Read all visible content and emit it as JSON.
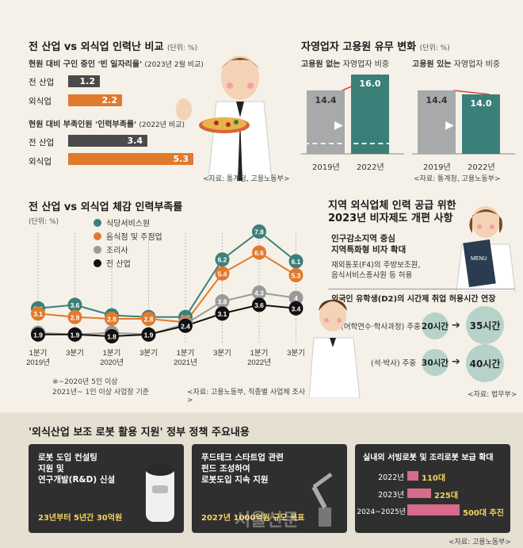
{
  "section1": {
    "title": "전 산업 vs 외식업 인력난 비교",
    "unit": "(단위: %)",
    "sub1": "현원 대비 구인 중인 '빈 일자리율'",
    "sub1_note": "(2023년 2월 비교)",
    "sub2": "현원 대비 부족인원 '인력부족률'",
    "sub2_note": "(2022년 비교)",
    "source": "<자료: 통계청, 고용노동부>",
    "bars1": [
      {
        "label": "전 산업",
        "value": "1.2"
      },
      {
        "label": "외식업",
        "value": "2.2"
      }
    ],
    "bars2": [
      {
        "label": "전 산업",
        "value": "3.4"
      },
      {
        "label": "외식업",
        "value": "5.3"
      }
    ]
  },
  "section2": {
    "title": "자영업자 고용원 유무 변화",
    "unit": "(단위: %)",
    "left_label_bold": "고용원 없는",
    "left_label": "자영업자 비중",
    "right_label_bold": "고용원 있는",
    "right_label": "자영업자 비중",
    "left": [
      {
        "year": "2019년",
        "value": "14.4"
      },
      {
        "year": "2022년",
        "value": "16.0"
      }
    ],
    "right": [
      {
        "year": "2019년",
        "value": "14.4"
      },
      {
        "year": "2022년",
        "value": "14.0"
      }
    ],
    "source": "<자료: 통계청, 고용노동부>"
  },
  "chart_data": {
    "type": "line",
    "title": "전 산업 vs 외식업 체감 인력부족률",
    "unit": "(단위: %)",
    "x": [
      "1분기\n2019년",
      "3분기",
      "1분기\n2020년",
      "3분기",
      "1분기\n2021년",
      "3분기",
      "1분기\n2022년",
      "3분기"
    ],
    "series": [
      {
        "name": "식당서비스원",
        "color": "#3c7f78",
        "values": [
          3.4,
          3.6,
          3.0,
          2.9,
          2.9,
          6.2,
          7.8,
          6.1
        ]
      },
      {
        "name": "음식점 및 주점업",
        "color": "#e07a2e",
        "values": [
          3.1,
          2.9,
          2.8,
          2.8,
          2.6,
          5.4,
          6.6,
          5.3
        ]
      },
      {
        "name": "조리사",
        "color": "#9a9a9a",
        "values": [
          2.0,
          1.9,
          2.0,
          1.9,
          2.5,
          3.8,
          4.3,
          4.0
        ]
      },
      {
        "name": "전 산업",
        "color": "#111111",
        "values": [
          1.9,
          1.9,
          1.8,
          1.9,
          2.4,
          3.1,
          3.6,
          3.4
        ]
      }
    ],
    "note1": "※~2020년 5인 이상",
    "note2": "2021년~ 1인 이상 사업장 기준",
    "source": "<자료: 고용노동부, 직종별 사업체 조사>"
  },
  "section4": {
    "title1": "지역 외식업체 인력 공급 위한",
    "title2": "2023년 비자제도 개편 사항",
    "box_title1": "인구감소지역 중심",
    "box_title2": "지역특화형 비자 확대",
    "box_text1": "재외동포(F4)의 주방보조원,",
    "box_text2": "음식서비스종사원 등 허용",
    "sub_title": "외국인 유학생(D2)의 시간제 취업 허용시간 연장",
    "row1_label": "(어학연수·학사과정) 주중",
    "row1_from": "20시간",
    "row1_to": "35시간",
    "row2_label": "(석·박사) 주중",
    "row2_from": "30시간",
    "row2_to": "40시간",
    "source": "<자료: 법무부>"
  },
  "section5": {
    "title": "'외식산업 보조 로봇 활용 지원' 정부 정책 주요내용",
    "p1_line1": "로봇 도입 컨설팅",
    "p1_line2": "지원 및",
    "p1_line3": "연구개발(R&D) 신설",
    "p1_high": "23년부터 5년간 30억원",
    "p2_line1": "푸드테크 스타트업 관련",
    "p2_line2": "펀드 조성하여",
    "p2_line3": "로봇도입 지속 지원",
    "p2_high": "2027년 1000억원 규모 목표",
    "p3_title": "실내외 서빙로봇 및 조리로봇 보급 확대",
    "p3_rows": [
      {
        "year": "2022년",
        "value": "110대"
      },
      {
        "year": "2023년",
        "value": "225대"
      },
      {
        "year": "2024~2025년",
        "value": "500대 추진"
      }
    ],
    "source": "<자료: 고용노동부>",
    "watermark": "서울신문"
  }
}
